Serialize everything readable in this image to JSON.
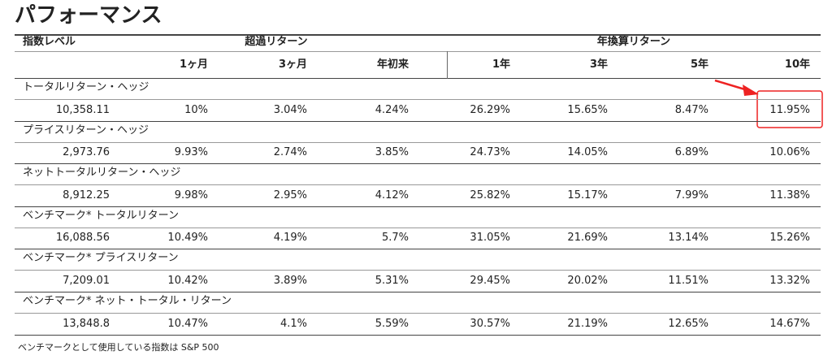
{
  "title": "パフォーマンス",
  "table": {
    "headers": {
      "level": "指数レベル",
      "excess": "超過リターン",
      "annualized": "年換算リターン"
    },
    "subheaders": [
      "1ヶ月",
      "3ヶ月",
      "年初来",
      "1年",
      "3年",
      "5年",
      "10年"
    ],
    "rows": [
      {
        "name": "トータルリターン・ヘッジ",
        "values": [
          "10,358.11",
          "10%",
          "3.04%",
          "4.24%",
          "26.29%",
          "15.65%",
          "8.47%",
          "11.95%"
        ]
      },
      {
        "name": "プライスリターン・ヘッジ",
        "values": [
          "2,973.76",
          "9.93%",
          "2.74%",
          "3.85%",
          "24.73%",
          "14.05%",
          "6.89%",
          "10.06%"
        ]
      },
      {
        "name": "ネットトータルリターン・ヘッジ",
        "values": [
          "8,912.25",
          "9.98%",
          "2.95%",
          "4.12%",
          "25.82%",
          "15.17%",
          "7.99%",
          "11.38%"
        ]
      },
      {
        "name": "ベンチマーク* トータルリターン",
        "values": [
          "16,088.56",
          "10.49%",
          "4.19%",
          "5.7%",
          "31.05%",
          "21.69%",
          "13.14%",
          "15.26%"
        ]
      },
      {
        "name": "ベンチマーク* プライスリターン",
        "values": [
          "7,209.01",
          "10.42%",
          "3.89%",
          "5.31%",
          "29.45%",
          "20.02%",
          "11.51%",
          "13.32%"
        ]
      },
      {
        "name": "ベンチマーク* ネット・トータル・リターン",
        "values": [
          "13,848.8",
          "10.47%",
          "4.1%",
          "5.59%",
          "30.57%",
          "21.19%",
          "12.65%",
          "14.67%"
        ]
      }
    ]
  },
  "footnote": "ベンチマークとして使用している指数は S&P 500"
}
